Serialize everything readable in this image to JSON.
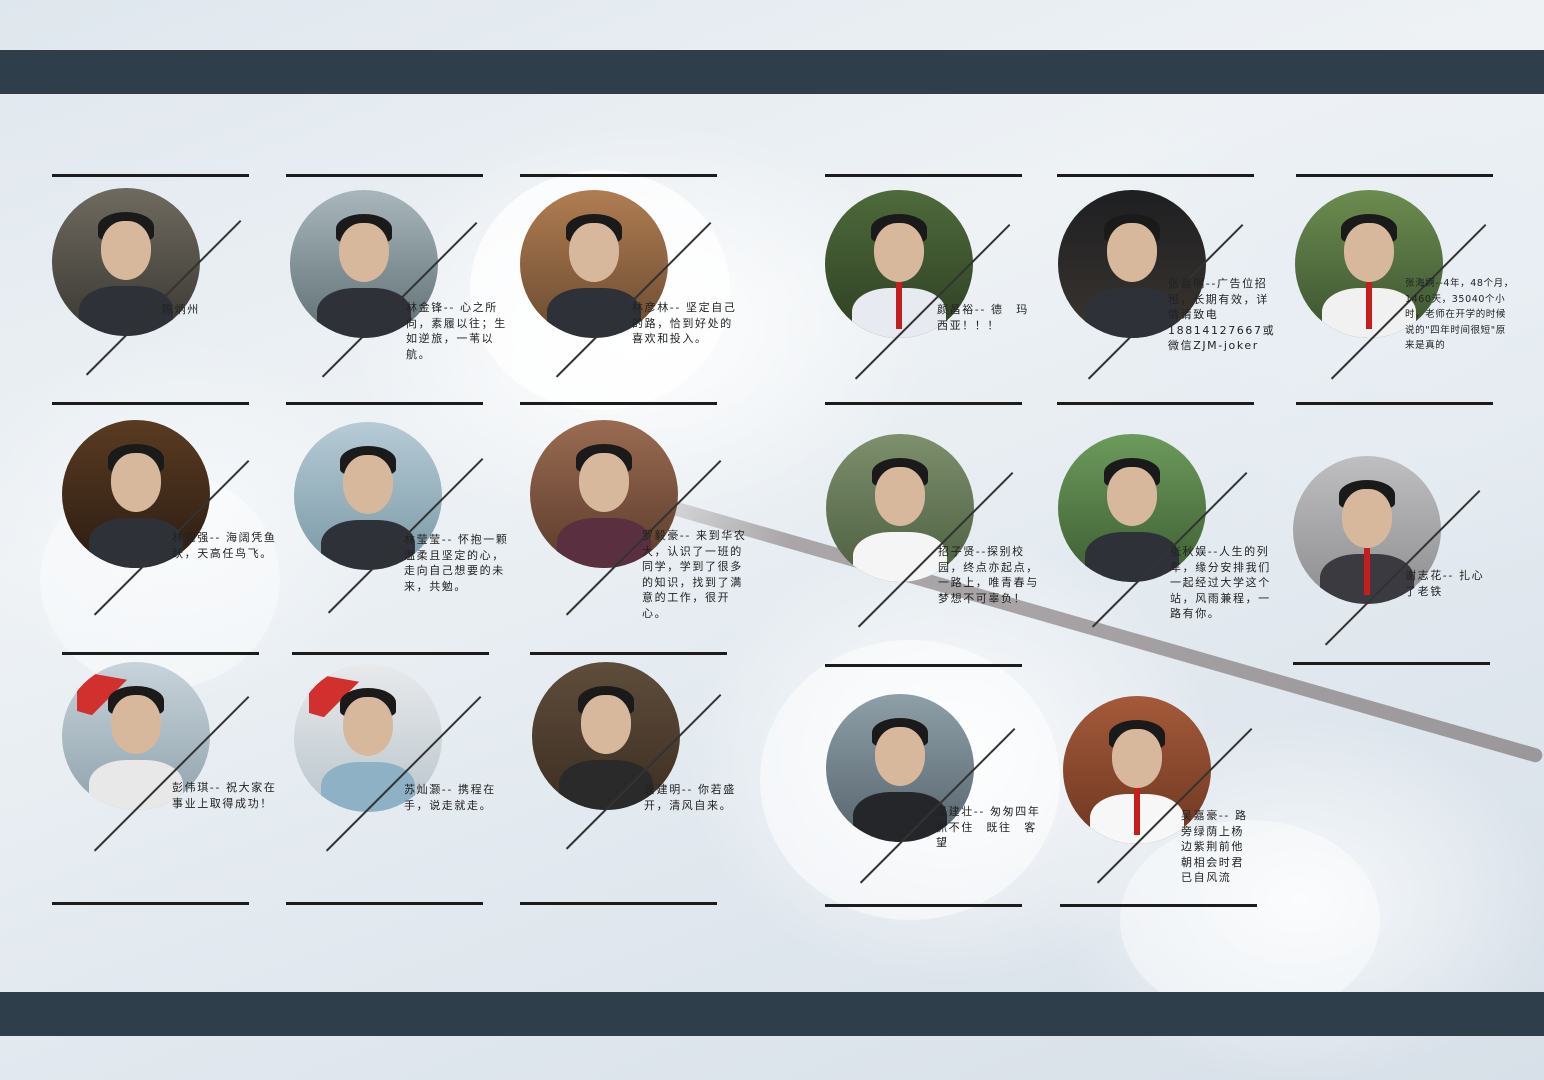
{
  "people": [
    {
      "caption": "陈炳州"
    },
    {
      "caption": "林金锋-- 心之所向，素履以往；生如逆旅，一苇以航。"
    },
    {
      "caption": "林彦林-- 坚定自己的路，恰到好处的喜欢和投入。"
    },
    {
      "caption": "颜昌裕-- 德　玛　西亚！！！"
    },
    {
      "caption": "张嘉明--广告位招租，长期有效，详情请致电18814127667或微信ZJM-joker"
    },
    {
      "caption": "张海婀--4年，48个月，1460天，35040个小时，老师在开学的时候说的\"四年时间很短\"原来是真的"
    },
    {
      "caption": "林耀强-- 海阔凭鱼跃，天高任鸟飞。"
    },
    {
      "caption": "林莹莹-- 怀抱一颗温柔且坚定的心，走向自己想要的未来，共勉。"
    },
    {
      "caption": "罗毅豪-- 来到华农大，认识了一班的同学，学到了很多的知识，找到了满意的工作，很开心。"
    },
    {
      "caption": "招子贤--探别校园，终点亦起点，一路上，唯青春与梦想不可辜负！"
    },
    {
      "caption": "张秋娱--人生的列车，缘分安排我们一起经过大学这个站，风雨兼程，一路有你。"
    },
    {
      "caption": "谢志花-- 扎心了老铁"
    },
    {
      "caption": "彭伟琪-- 祝大家在事业上取得成功！"
    },
    {
      "caption": "苏灿灏-- 携程在手，说走就走。"
    },
    {
      "caption": "唐建明-- 你若盛开，清风自来。"
    },
    {
      "caption": "温建壮-- 匆匆四年　抓不住　既往　客望"
    },
    {
      "caption": "吴嘉豪-- 路旁绿荫上杨边紫荆前他朝相会时君已自风流"
    }
  ],
  "colors": {
    "band": "#2f3e4b",
    "line": "#1c1c1c"
  }
}
